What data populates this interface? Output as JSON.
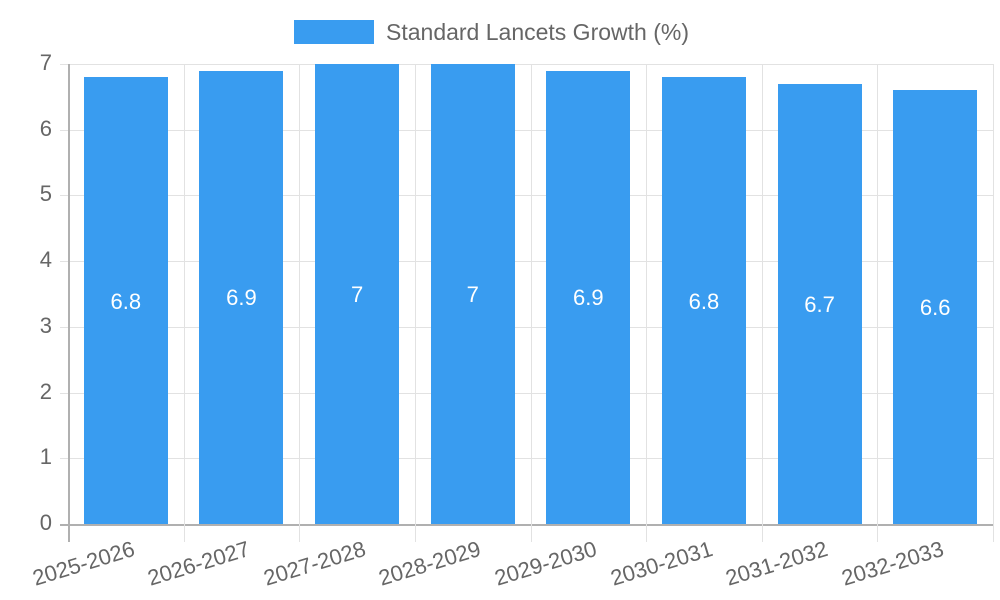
{
  "chart_data": {
    "type": "bar",
    "title": "",
    "xlabel": "",
    "ylabel": "",
    "categories": [
      "2025-2026",
      "2026-2027",
      "2027-2028",
      "2028-2029",
      "2029-2030",
      "2030-2031",
      "2031-2032",
      "2032-2033"
    ],
    "series": [
      {
        "name": "Standard Lancets Growth (%)",
        "values": [
          6.8,
          6.9,
          7,
          7,
          6.9,
          6.8,
          6.7,
          6.6
        ],
        "color": "#399cf0"
      }
    ],
    "ylim": [
      0,
      7
    ],
    "yticks": [
      0,
      1,
      2,
      3,
      4,
      5,
      6,
      7
    ],
    "grid": true,
    "legend_position": "top",
    "data_labels": [
      "6.8",
      "6.9",
      "7",
      "7",
      "6.9",
      "6.8",
      "6.7",
      "6.6"
    ]
  },
  "legend": {
    "label": "Standard Lancets Growth (%)",
    "color": "#399cf0"
  }
}
